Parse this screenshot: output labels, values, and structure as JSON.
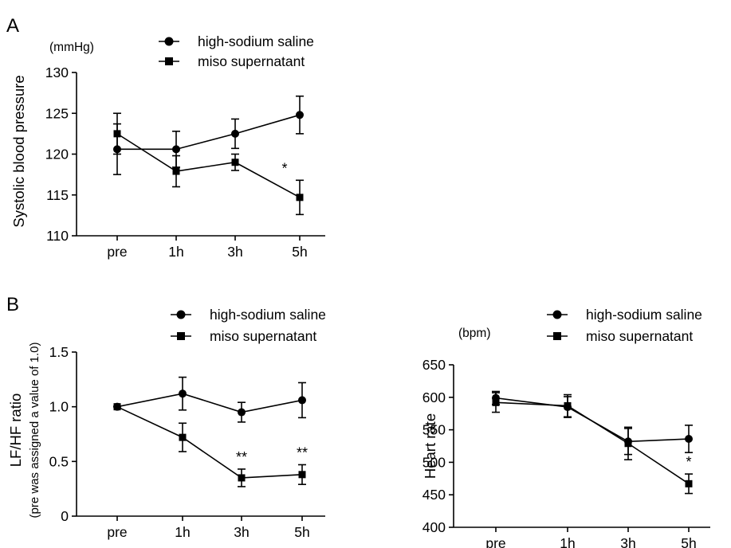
{
  "panel_labels": {
    "a": "A",
    "b": "B"
  },
  "legend": {
    "series1": "high-sodium saline",
    "series2": "miso supernatant"
  },
  "chart_data": [
    {
      "id": "A",
      "type": "line",
      "unit": "(mmHg)",
      "ylabel": "Systolic blood pressure",
      "categories": [
        "pre",
        "1h",
        "3h",
        "5h"
      ],
      "ylim": [
        110,
        130
      ],
      "yticks": [
        110,
        115,
        120,
        125,
        130
      ],
      "legend_position": "top",
      "series": [
        {
          "name": "high-sodium saline",
          "marker": "circle",
          "values": [
            120.6,
            120.6,
            122.5,
            124.8
          ],
          "errors": [
            3.1,
            2.2,
            1.8,
            2.3
          ]
        },
        {
          "name": "miso supernatant",
          "marker": "square",
          "values": [
            122.5,
            117.9,
            119.0,
            114.7
          ],
          "errors": [
            2.5,
            1.9,
            1.0,
            2.1
          ]
        }
      ],
      "annotations": [
        {
          "category": "5h",
          "text": "*"
        }
      ]
    },
    {
      "id": "B-left",
      "type": "line",
      "unit": "",
      "ylabel": "LF/HF ratio",
      "ylabel2": "(pre was assigned a value of 1.0)",
      "categories": [
        "pre",
        "1h",
        "3h",
        "5h"
      ],
      "ylim": [
        0,
        1.5
      ],
      "yticks": [
        0,
        0.5,
        1.0,
        1.5
      ],
      "ytick_labels": [
        "0",
        "0.5",
        "1.0",
        "1.5"
      ],
      "legend_position": "top",
      "series": [
        {
          "name": "high-sodium saline",
          "marker": "circle",
          "values": [
            1.0,
            1.12,
            0.95,
            1.06
          ],
          "errors": [
            0,
            0.15,
            0.09,
            0.16
          ]
        },
        {
          "name": "miso supernatant",
          "marker": "square",
          "values": [
            1.0,
            0.72,
            0.35,
            0.38
          ],
          "errors": [
            0,
            0.13,
            0.08,
            0.09
          ]
        }
      ],
      "annotations": [
        {
          "category": "3h",
          "text": "**"
        },
        {
          "category": "5h",
          "text": "**"
        }
      ]
    },
    {
      "id": "B-right",
      "type": "line",
      "unit": "(bpm)",
      "ylabel": "Heart rate",
      "categories": [
        "pre",
        "1h",
        "3h",
        "5h"
      ],
      "ylim": [
        400,
        650
      ],
      "yticks": [
        400,
        450,
        500,
        550,
        600,
        650
      ],
      "legend_position": "top",
      "series": [
        {
          "name": "high-sodium saline",
          "marker": "circle",
          "values": [
            599,
            585,
            532,
            536
          ],
          "errors": [
            10,
            16,
            20,
            21
          ]
        },
        {
          "name": "miso supernatant",
          "marker": "square",
          "values": [
            592,
            587,
            529,
            467
          ],
          "errors": [
            15,
            17,
            25,
            15
          ]
        }
      ],
      "annotations": [
        {
          "category": "5h",
          "text": "*"
        }
      ]
    }
  ]
}
